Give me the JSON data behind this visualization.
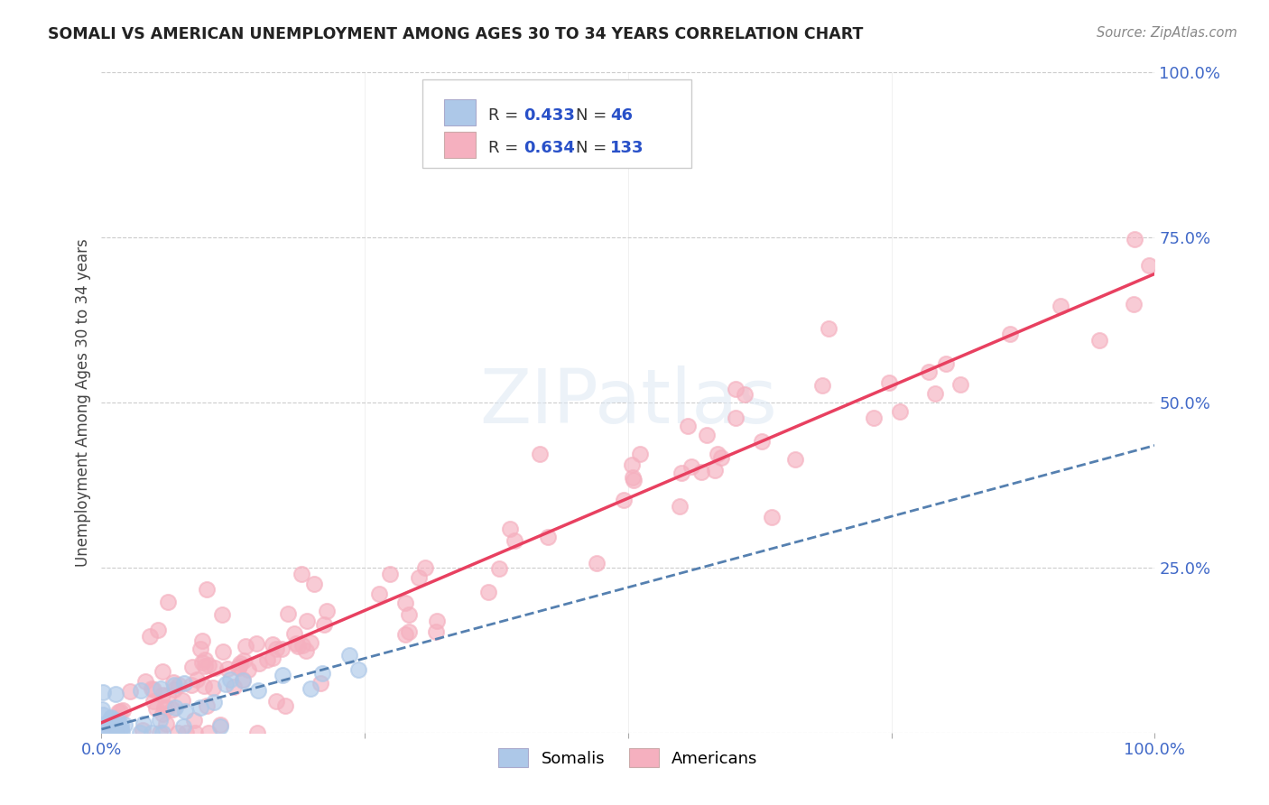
{
  "title": "SOMALI VS AMERICAN UNEMPLOYMENT AMONG AGES 30 TO 34 YEARS CORRELATION CHART",
  "source": "Source: ZipAtlas.com",
  "ylabel": "Unemployment Among Ages 30 to 34 years",
  "xlim": [
    0.0,
    1.0
  ],
  "ylim": [
    0.0,
    1.0
  ],
  "somali_R": 0.433,
  "somali_N": 46,
  "american_R": 0.634,
  "american_N": 133,
  "somali_color": "#adc8e8",
  "somali_edge_color": "#adc8e8",
  "somali_line_color": "#5580b0",
  "american_color": "#f5b0bf",
  "american_edge_color": "#f5b0bf",
  "american_line_color": "#e84060",
  "watermark": "ZIPatlas",
  "background_color": "#ffffff",
  "grid_color": "#cccccc",
  "tick_label_color": "#4169c8",
  "legend_color": "#2850c8",
  "title_color": "#222222",
  "source_color": "#888888",
  "ylabel_color": "#444444",
  "somali_line_slope": 0.43,
  "somali_line_intercept": 0.005,
  "american_line_slope": 0.68,
  "american_line_intercept": 0.015
}
